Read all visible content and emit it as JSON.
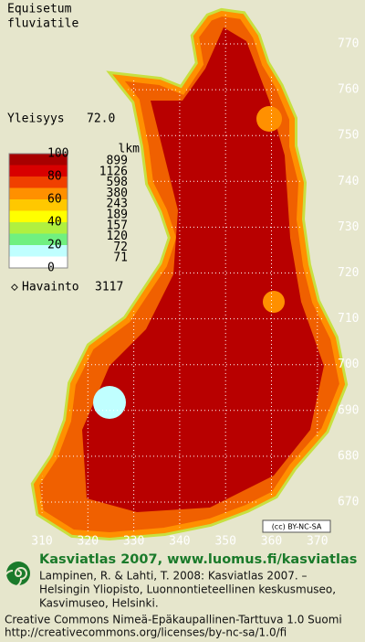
{
  "title": [
    "Equisetum",
    "fluviatile"
  ],
  "frequency": {
    "label": "Yleisyys",
    "value": "72.0"
  },
  "legend": {
    "scale_labels": [
      "100",
      "80",
      "60",
      "40",
      "20",
      "0"
    ],
    "count_header": "lkm",
    "counts": [
      "899",
      "1126",
      "598",
      "380",
      "243",
      "189",
      "157",
      "120",
      "72",
      "71"
    ],
    "colors": [
      "#a80000",
      "#d80000",
      "#f04000",
      "#ff9000",
      "#ffc800",
      "#ffff00",
      "#b0f040",
      "#70f080",
      "#c0ffff",
      "#ffffff"
    ]
  },
  "observations": {
    "label": "Havainto",
    "value": "3117"
  },
  "grid": {
    "northing": [
      "770",
      "760",
      "750",
      "740",
      "730",
      "720",
      "710",
      "700",
      "690",
      "680",
      "670"
    ],
    "easting": [
      "310",
      "320",
      "330",
      "340",
      "350",
      "360",
      "370"
    ]
  },
  "license_badge": "(cc) BY-NC-SA",
  "footer": {
    "headline": "Kasviatlas 2007, www.luomus.fi/kasviatlas",
    "citation": [
      "Lampinen, R. & Lahti, T. 2008: Kasviatlas 2007. –",
      "Helsingin Yliopisto, Luonnontieteellinen keskusmuseo,",
      "Kasvimuseo, Helsinki."
    ],
    "license": [
      "Creative Commons Nimeä-Epäkaupallinen-Tarttuva 1.0 Suomi",
      "http://creativecommons.org/licenses/by-nc-sa/1.0/fi"
    ]
  }
}
